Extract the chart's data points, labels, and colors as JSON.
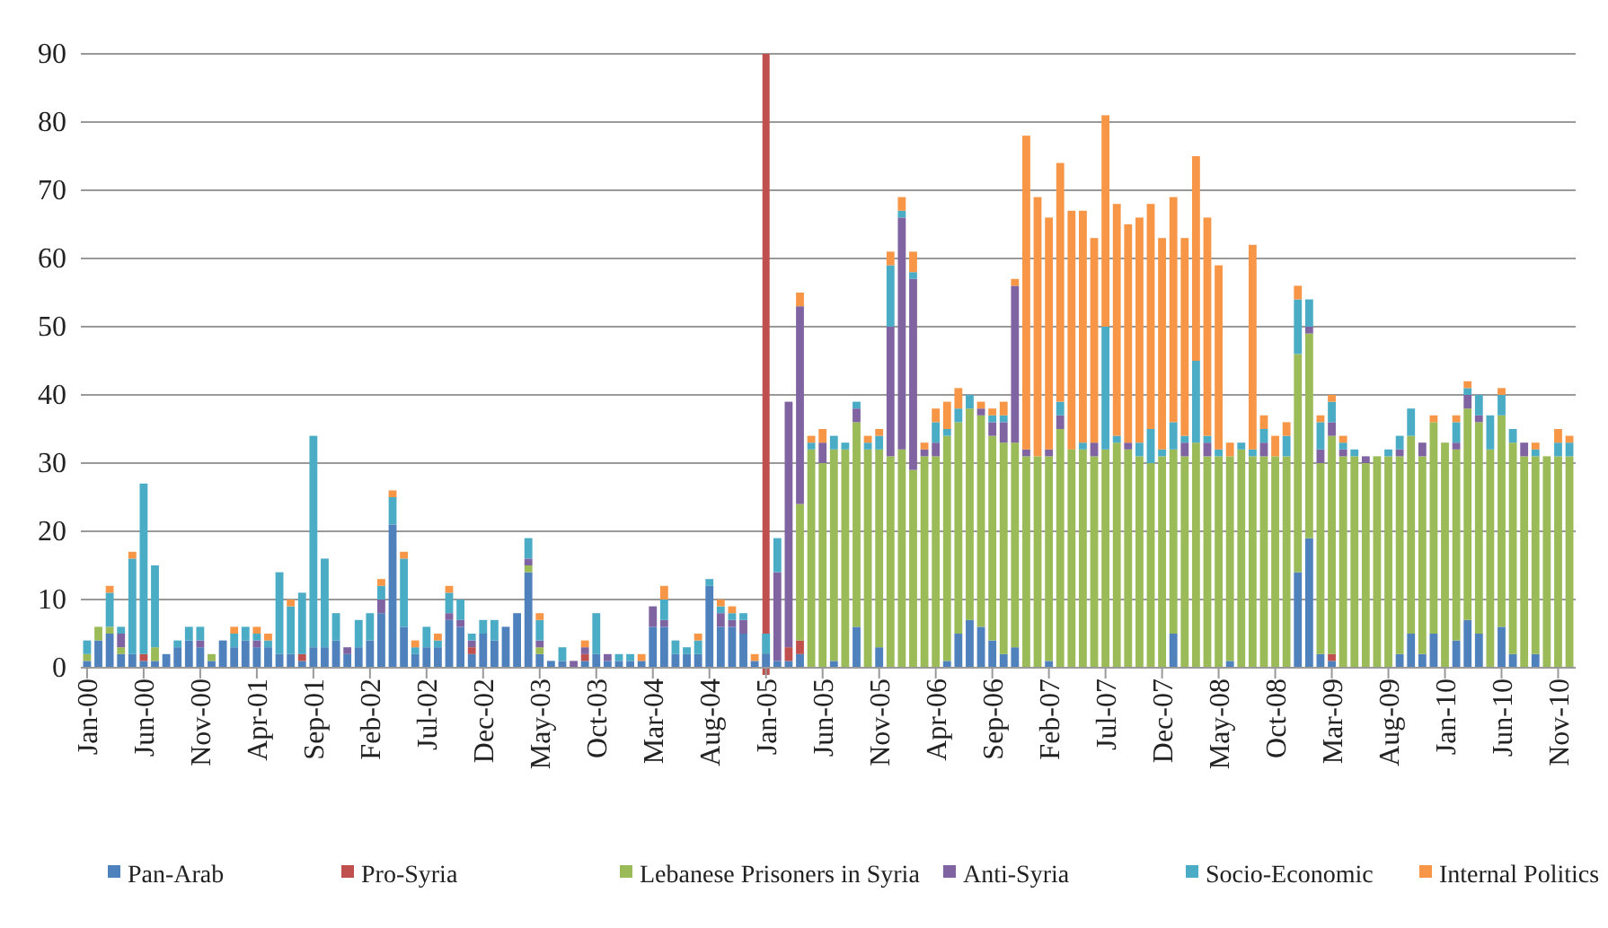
{
  "chart_data": {
    "type": "bar",
    "stacked": true,
    "categories": [
      "Jan-00",
      null,
      null,
      null,
      null,
      "Jun-00",
      null,
      null,
      null,
      null,
      "Nov-00",
      null,
      null,
      null,
      null,
      "Apr-01",
      null,
      null,
      null,
      null,
      "Sep-01",
      null,
      null,
      null,
      null,
      "Feb-02",
      null,
      null,
      null,
      null,
      "Jul-02",
      null,
      null,
      null,
      null,
      "Dec-02",
      null,
      null,
      null,
      null,
      "May-03",
      null,
      null,
      null,
      null,
      "Oct-03",
      null,
      null,
      null,
      null,
      "Mar-04",
      null,
      null,
      null,
      null,
      "Aug-04",
      null,
      null,
      null,
      null,
      "Jan-05",
      null,
      null,
      null,
      null,
      "Jun-05",
      null,
      null,
      null,
      null,
      "Nov-05",
      null,
      null,
      null,
      null,
      "Apr-06",
      null,
      null,
      null,
      null,
      "Sep-06",
      null,
      null,
      null,
      null,
      "Feb-07",
      null,
      null,
      null,
      null,
      "Jul-07",
      null,
      null,
      null,
      null,
      "Dec-07",
      null,
      null,
      null,
      null,
      "May-08",
      null,
      null,
      null,
      null,
      "Oct-08",
      null,
      null,
      null,
      null,
      "Mar-09",
      null,
      null,
      null,
      null,
      "Aug-09",
      null,
      null,
      null,
      null,
      "Jan-10",
      null,
      null,
      null,
      null,
      "Jun-10",
      null,
      null,
      null,
      null,
      "Nov-10",
      null
    ],
    "series": [
      {
        "name": "Pan-Arab",
        "color": "#4f81bd",
        "values": [
          1,
          4,
          5,
          2,
          2,
          1,
          1,
          2,
          3,
          4,
          3,
          1,
          4,
          3,
          4,
          3,
          3,
          2,
          2,
          1,
          3,
          3,
          4,
          2,
          3,
          4,
          8,
          21,
          6,
          2,
          3,
          3,
          7,
          6,
          2,
          5,
          4,
          6,
          8,
          14,
          2,
          1,
          1,
          0,
          1,
          2,
          1,
          1,
          1,
          1,
          6,
          6,
          2,
          2,
          2,
          12,
          6,
          6,
          5,
          1,
          2,
          1,
          1,
          2,
          0,
          0,
          1,
          0,
          6,
          0,
          3,
          0,
          0,
          0,
          0,
          0,
          1,
          5,
          7,
          6,
          4,
          2,
          3,
          0,
          0,
          1,
          0,
          0,
          0,
          0,
          0,
          0,
          0,
          0,
          0,
          0,
          5,
          0,
          0,
          0,
          0,
          1,
          0,
          0,
          0,
          0,
          0,
          14,
          19,
          2,
          1,
          0,
          0,
          0,
          0,
          0,
          2,
          5,
          2,
          5,
          0,
          4,
          7,
          5,
          0,
          6,
          2,
          0,
          2,
          0,
          0,
          0
        ]
      },
      {
        "name": "Pro-Syria",
        "color": "#c0504d",
        "values": [
          0,
          0,
          0,
          0,
          0,
          1,
          0,
          0,
          0,
          0,
          0,
          0,
          0,
          0,
          0,
          0,
          0,
          0,
          0,
          1,
          0,
          0,
          0,
          0,
          0,
          0,
          0,
          0,
          0,
          0,
          0,
          0,
          0,
          0,
          1,
          0,
          0,
          0,
          0,
          0,
          0,
          0,
          0,
          0,
          1,
          0,
          0,
          0,
          0,
          0,
          0,
          0,
          0,
          0,
          0,
          0,
          0,
          0,
          0,
          0,
          0,
          0,
          2,
          2,
          0,
          0,
          0,
          0,
          0,
          0,
          0,
          0,
          0,
          0,
          0,
          0,
          0,
          0,
          0,
          0,
          0,
          0,
          0,
          0,
          0,
          0,
          0,
          0,
          0,
          0,
          0,
          0,
          0,
          0,
          0,
          0,
          0,
          0,
          0,
          0,
          0,
          0,
          0,
          0,
          0,
          0,
          0,
          0,
          0,
          0,
          1,
          0,
          0,
          0,
          0,
          0,
          0,
          0,
          0,
          0,
          0,
          0,
          0,
          0,
          0,
          0,
          0,
          0,
          0,
          0,
          0,
          0
        ]
      },
      {
        "name": "Lebanese Prisoners in Syria",
        "color": "#9bbb59",
        "values": [
          1,
          2,
          1,
          1,
          0,
          0,
          2,
          0,
          0,
          0,
          0,
          1,
          0,
          0,
          0,
          0,
          0,
          0,
          0,
          0,
          0,
          0,
          0,
          0,
          0,
          0,
          0,
          0,
          0,
          0,
          0,
          0,
          0,
          0,
          0,
          0,
          0,
          0,
          0,
          1,
          1,
          0,
          0,
          0,
          0,
          0,
          0,
          0,
          0,
          0,
          0,
          0,
          0,
          0,
          0,
          0,
          0,
          0,
          0,
          0,
          0,
          0,
          0,
          20,
          32,
          30,
          31,
          32,
          30,
          32,
          29,
          31,
          32,
          29,
          31,
          31,
          33,
          31,
          31,
          31,
          30,
          31,
          30,
          31,
          31,
          30,
          35,
          32,
          32,
          31,
          32,
          33,
          32,
          31,
          30,
          31,
          27,
          31,
          33,
          31,
          31,
          30,
          32,
          31,
          31,
          31,
          31,
          32,
          30,
          28,
          32,
          31,
          31,
          30,
          31,
          31,
          29,
          29,
          29,
          31,
          33,
          28,
          31,
          31,
          32,
          31,
          31,
          31,
          29,
          31,
          31,
          31
        ]
      },
      {
        "name": "Anti-Syria",
        "color": "#8064a2",
        "values": [
          0,
          0,
          0,
          2,
          0,
          0,
          0,
          0,
          0,
          0,
          1,
          0,
          0,
          0,
          0,
          1,
          0,
          0,
          0,
          0,
          0,
          0,
          0,
          1,
          0,
          0,
          2,
          0,
          0,
          0,
          0,
          0,
          1,
          1,
          1,
          0,
          0,
          0,
          0,
          1,
          1,
          0,
          0,
          1,
          1,
          0,
          1,
          0,
          0,
          0,
          3,
          1,
          0,
          0,
          0,
          0,
          2,
          1,
          2,
          0,
          0,
          13,
          36,
          29,
          0,
          3,
          0,
          0,
          2,
          0,
          0,
          19,
          34,
          28,
          1,
          2,
          0,
          0,
          0,
          1,
          2,
          3,
          23,
          1,
          0,
          1,
          2,
          0,
          0,
          2,
          0,
          0,
          1,
          0,
          0,
          0,
          0,
          2,
          0,
          2,
          0,
          0,
          0,
          0,
          2,
          0,
          0,
          0,
          1,
          2,
          2,
          1,
          0,
          1,
          0,
          0,
          1,
          0,
          2,
          0,
          0,
          1,
          2,
          1,
          0,
          0,
          0,
          2,
          0,
          0,
          0,
          0
        ]
      },
      {
        "name": "Socio-Economic",
        "color": "#4bacc6",
        "values": [
          2,
          0,
          5,
          1,
          14,
          25,
          12,
          0,
          1,
          2,
          2,
          0,
          0,
          2,
          2,
          1,
          1,
          12,
          7,
          9,
          31,
          13,
          4,
          0,
          4,
          4,
          2,
          4,
          10,
          1,
          3,
          1,
          3,
          3,
          1,
          2,
          3,
          0,
          0,
          3,
          3,
          0,
          2,
          0,
          0,
          6,
          0,
          1,
          1,
          0,
          0,
          3,
          2,
          1,
          2,
          1,
          1,
          1,
          1,
          0,
          3,
          5,
          0,
          0,
          1,
          0,
          2,
          1,
          1,
          1,
          2,
          9,
          1,
          1,
          0,
          3,
          1,
          2,
          2,
          0,
          1,
          1,
          0,
          0,
          0,
          0,
          2,
          0,
          1,
          0,
          18,
          1,
          0,
          2,
          5,
          1,
          4,
          1,
          12,
          1,
          1,
          0,
          1,
          1,
          2,
          0,
          3,
          8,
          4,
          4,
          3,
          1,
          1,
          0,
          0,
          1,
          2,
          4,
          0,
          0,
          0,
          3,
          1,
          3,
          5,
          3,
          2,
          0,
          1,
          0,
          2,
          2
        ]
      },
      {
        "name": "Internal Politics",
        "color": "#f79646",
        "values": [
          0,
          0,
          1,
          0,
          1,
          0,
          0,
          0,
          0,
          0,
          0,
          0,
          0,
          1,
          0,
          1,
          1,
          0,
          1,
          0,
          0,
          0,
          0,
          0,
          0,
          0,
          1,
          1,
          1,
          1,
          0,
          1,
          1,
          0,
          0,
          0,
          0,
          0,
          0,
          0,
          1,
          0,
          0,
          0,
          1,
          0,
          0,
          0,
          0,
          1,
          0,
          2,
          0,
          0,
          1,
          0,
          1,
          1,
          0,
          1,
          0,
          0,
          0,
          2,
          1,
          2,
          0,
          0,
          0,
          1,
          1,
          2,
          2,
          3,
          1,
          2,
          4,
          3,
          0,
          1,
          1,
          2,
          1,
          46,
          38,
          34,
          35,
          35,
          34,
          30,
          31,
          34,
          32,
          33,
          33,
          31,
          33,
          29,
          30,
          32,
          27,
          2,
          0,
          30,
          2,
          3,
          2,
          2,
          0,
          1,
          1,
          1,
          0,
          0,
          0,
          0,
          0,
          0,
          0,
          1,
          0,
          1,
          1,
          0,
          0,
          1,
          0,
          0,
          1,
          0,
          2,
          1
        ]
      }
    ],
    "ylim": [
      0,
      90
    ],
    "yticks": [
      0,
      10,
      20,
      30,
      40,
      50,
      60,
      70,
      80,
      90
    ],
    "grid": "y",
    "legend": "bottom",
    "ref_lines": [
      {
        "axis": "x",
        "value": "Jan-05",
        "color": "#c0504d"
      }
    ]
  }
}
